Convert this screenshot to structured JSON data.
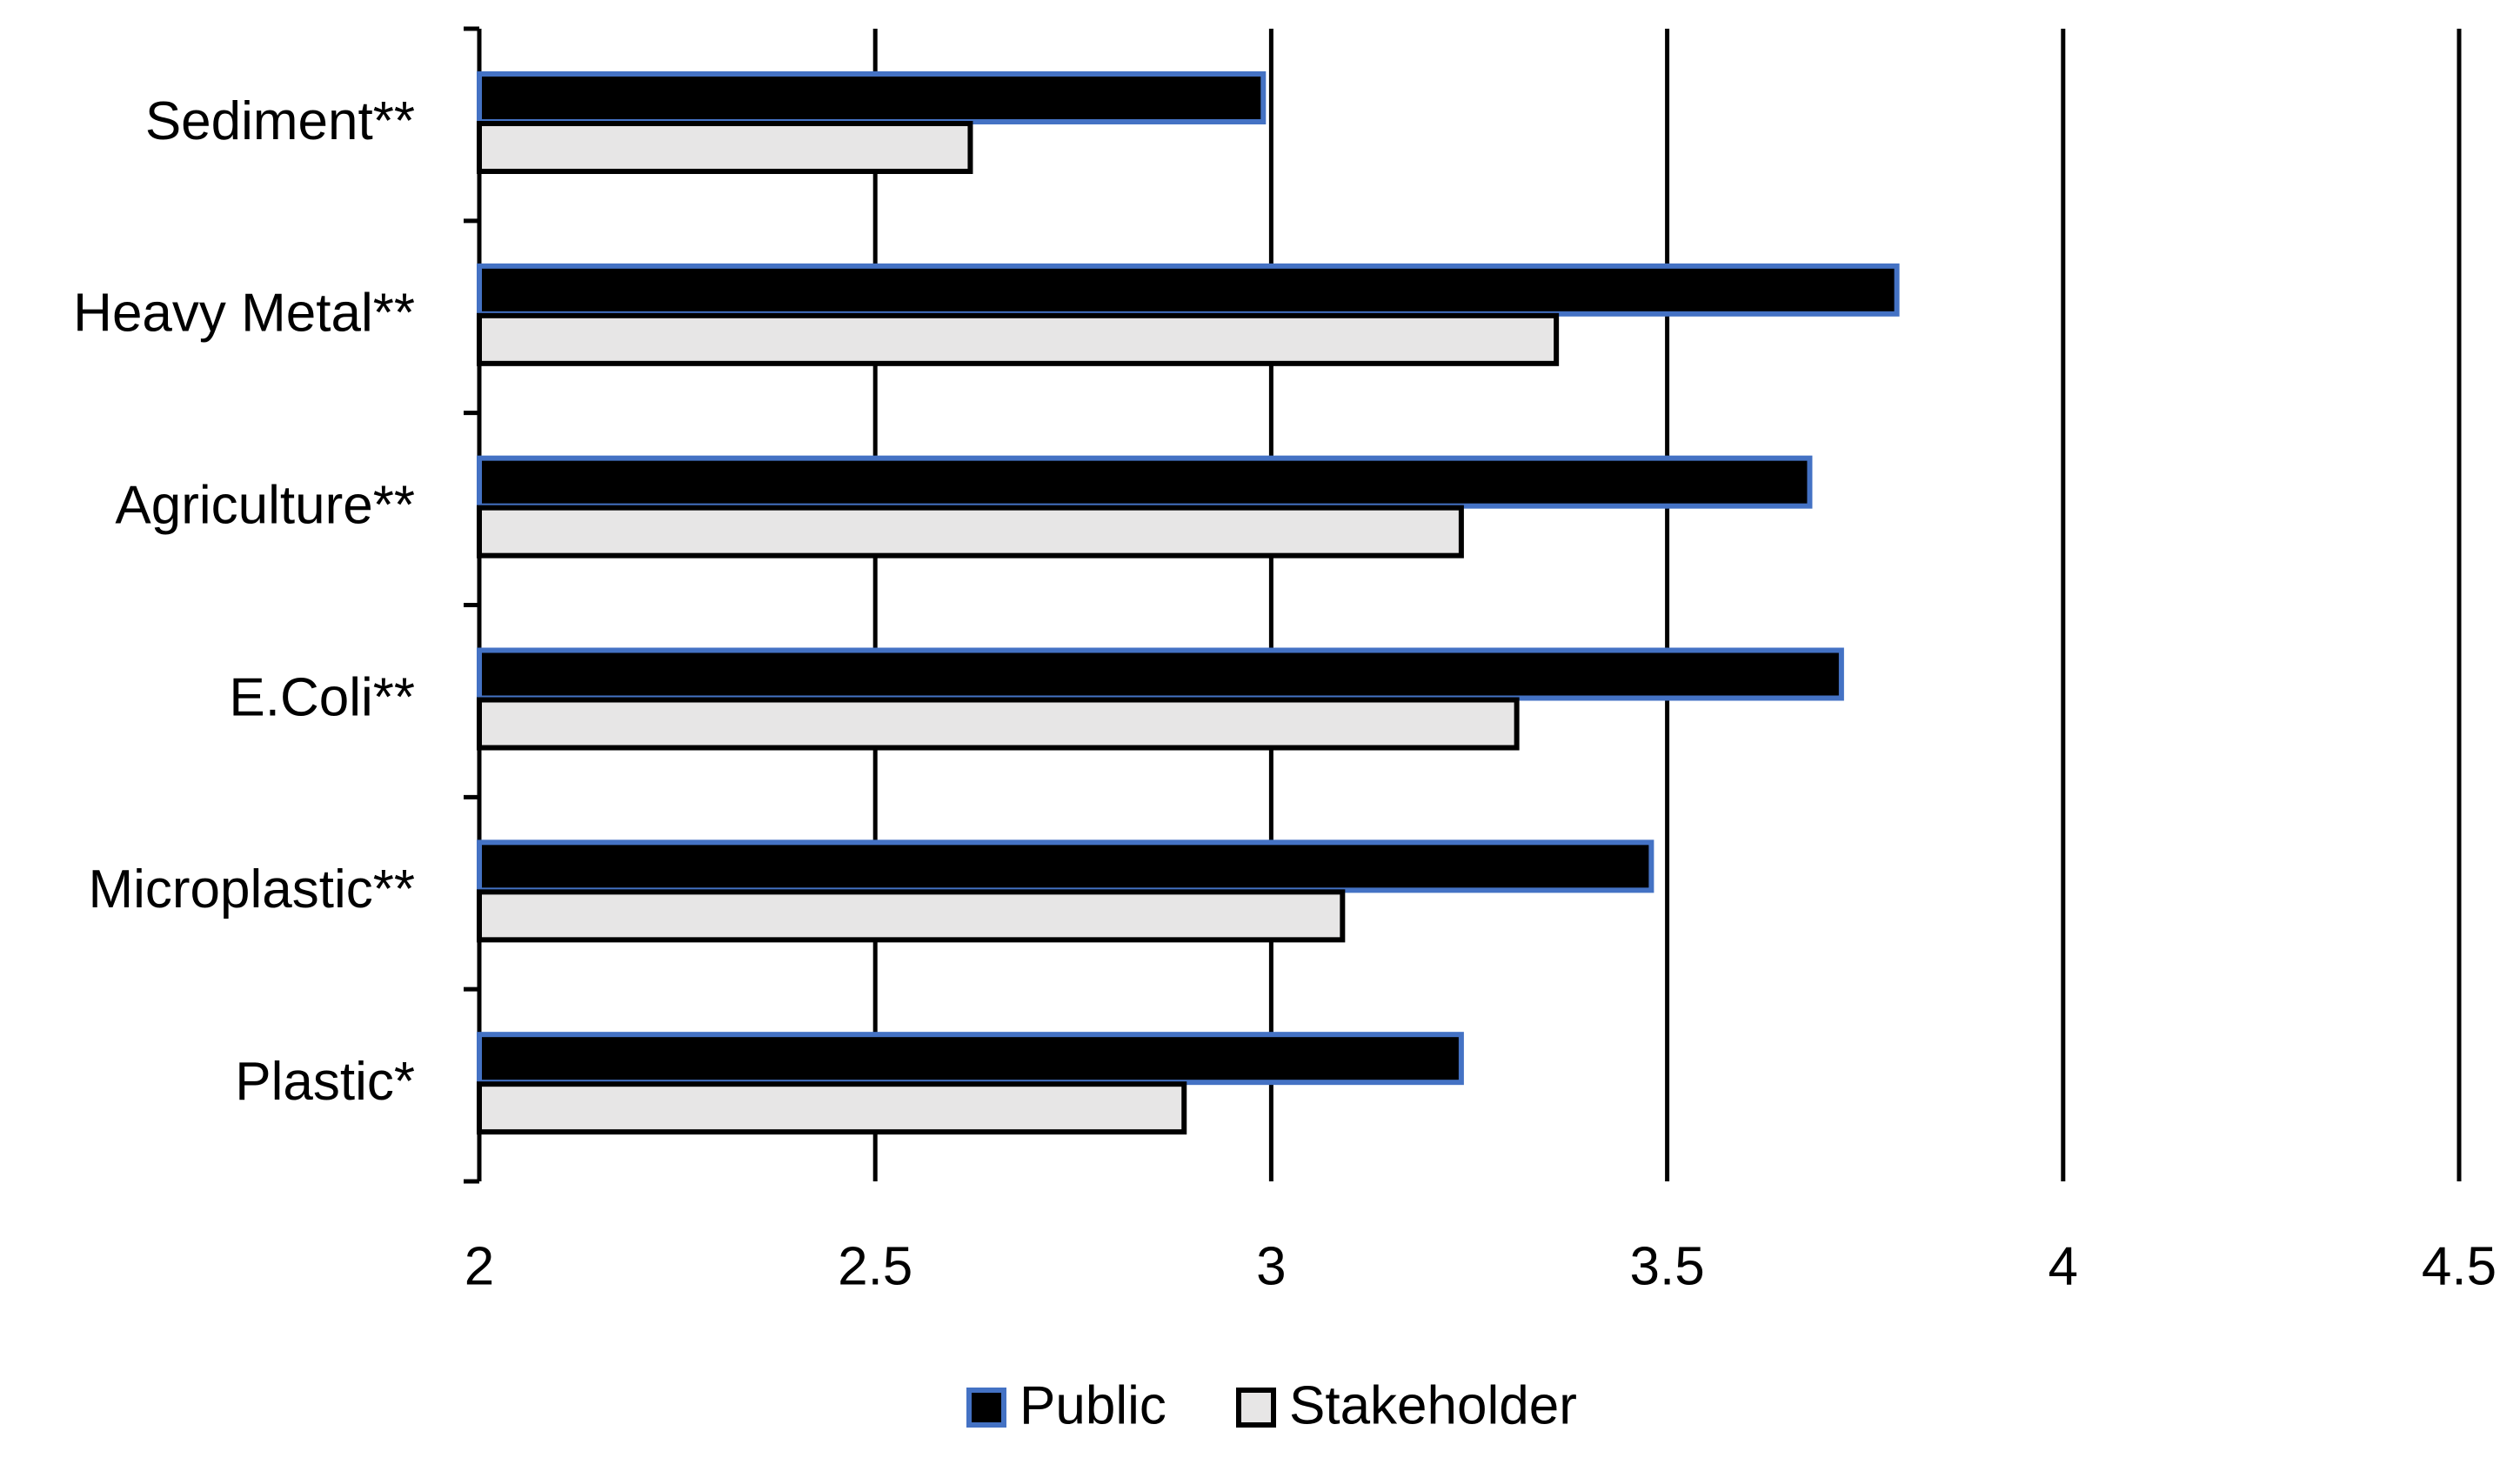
{
  "chart_data": {
    "type": "hbar",
    "categories": [
      "Sediment**",
      "Heavy Metal**",
      "Agriculture**",
      "E.Coli**",
      "Microplastic**",
      "Plastic*"
    ],
    "series": [
      {
        "name": "Public",
        "color": "#000000",
        "edgecolor": "#4472c4",
        "values": [
          2.99,
          3.79,
          3.68,
          3.72,
          3.48,
          3.24
        ]
      },
      {
        "name": "Stakeholder",
        "color": "#e7e6e6",
        "edgecolor": "#000000",
        "values": [
          2.62,
          3.36,
          3.24,
          3.31,
          3.09,
          2.89
        ]
      }
    ],
    "xlim": [
      2,
      4.5
    ],
    "xticks": [
      2,
      2.5,
      3,
      3.5,
      4,
      4.5
    ],
    "grid": true,
    "legend": "bottom"
  }
}
